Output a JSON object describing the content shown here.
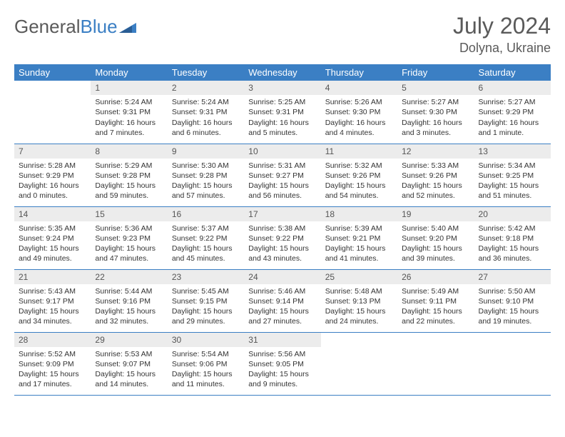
{
  "logo": {
    "text_gray": "General",
    "text_blue": "Blue"
  },
  "header": {
    "month_title": "July 2024",
    "location": "Dolyna, Ukraine"
  },
  "colors": {
    "header_bar": "#3b7fc4",
    "daynum_bg": "#ececec",
    "border": "#3b7fc4",
    "text_gray": "#5a5a5a",
    "background": "#ffffff"
  },
  "calendar": {
    "day_headers": [
      "Sunday",
      "Monday",
      "Tuesday",
      "Wednesday",
      "Thursday",
      "Friday",
      "Saturday"
    ],
    "first_weekday_index": 1,
    "days": [
      {
        "n": 1,
        "sr": "5:24 AM",
        "ss": "9:31 PM",
        "dl": "16 hours and 7 minutes."
      },
      {
        "n": 2,
        "sr": "5:24 AM",
        "ss": "9:31 PM",
        "dl": "16 hours and 6 minutes."
      },
      {
        "n": 3,
        "sr": "5:25 AM",
        "ss": "9:31 PM",
        "dl": "16 hours and 5 minutes."
      },
      {
        "n": 4,
        "sr": "5:26 AM",
        "ss": "9:30 PM",
        "dl": "16 hours and 4 minutes."
      },
      {
        "n": 5,
        "sr": "5:27 AM",
        "ss": "9:30 PM",
        "dl": "16 hours and 3 minutes."
      },
      {
        "n": 6,
        "sr": "5:27 AM",
        "ss": "9:29 PM",
        "dl": "16 hours and 1 minute."
      },
      {
        "n": 7,
        "sr": "5:28 AM",
        "ss": "9:29 PM",
        "dl": "16 hours and 0 minutes."
      },
      {
        "n": 8,
        "sr": "5:29 AM",
        "ss": "9:28 PM",
        "dl": "15 hours and 59 minutes."
      },
      {
        "n": 9,
        "sr": "5:30 AM",
        "ss": "9:28 PM",
        "dl": "15 hours and 57 minutes."
      },
      {
        "n": 10,
        "sr": "5:31 AM",
        "ss": "9:27 PM",
        "dl": "15 hours and 56 minutes."
      },
      {
        "n": 11,
        "sr": "5:32 AM",
        "ss": "9:26 PM",
        "dl": "15 hours and 54 minutes."
      },
      {
        "n": 12,
        "sr": "5:33 AM",
        "ss": "9:26 PM",
        "dl": "15 hours and 52 minutes."
      },
      {
        "n": 13,
        "sr": "5:34 AM",
        "ss": "9:25 PM",
        "dl": "15 hours and 51 minutes."
      },
      {
        "n": 14,
        "sr": "5:35 AM",
        "ss": "9:24 PM",
        "dl": "15 hours and 49 minutes."
      },
      {
        "n": 15,
        "sr": "5:36 AM",
        "ss": "9:23 PM",
        "dl": "15 hours and 47 minutes."
      },
      {
        "n": 16,
        "sr": "5:37 AM",
        "ss": "9:22 PM",
        "dl": "15 hours and 45 minutes."
      },
      {
        "n": 17,
        "sr": "5:38 AM",
        "ss": "9:22 PM",
        "dl": "15 hours and 43 minutes."
      },
      {
        "n": 18,
        "sr": "5:39 AM",
        "ss": "9:21 PM",
        "dl": "15 hours and 41 minutes."
      },
      {
        "n": 19,
        "sr": "5:40 AM",
        "ss": "9:20 PM",
        "dl": "15 hours and 39 minutes."
      },
      {
        "n": 20,
        "sr": "5:42 AM",
        "ss": "9:18 PM",
        "dl": "15 hours and 36 minutes."
      },
      {
        "n": 21,
        "sr": "5:43 AM",
        "ss": "9:17 PM",
        "dl": "15 hours and 34 minutes."
      },
      {
        "n": 22,
        "sr": "5:44 AM",
        "ss": "9:16 PM",
        "dl": "15 hours and 32 minutes."
      },
      {
        "n": 23,
        "sr": "5:45 AM",
        "ss": "9:15 PM",
        "dl": "15 hours and 29 minutes."
      },
      {
        "n": 24,
        "sr": "5:46 AM",
        "ss": "9:14 PM",
        "dl": "15 hours and 27 minutes."
      },
      {
        "n": 25,
        "sr": "5:48 AM",
        "ss": "9:13 PM",
        "dl": "15 hours and 24 minutes."
      },
      {
        "n": 26,
        "sr": "5:49 AM",
        "ss": "9:11 PM",
        "dl": "15 hours and 22 minutes."
      },
      {
        "n": 27,
        "sr": "5:50 AM",
        "ss": "9:10 PM",
        "dl": "15 hours and 19 minutes."
      },
      {
        "n": 28,
        "sr": "5:52 AM",
        "ss": "9:09 PM",
        "dl": "15 hours and 17 minutes."
      },
      {
        "n": 29,
        "sr": "5:53 AM",
        "ss": "9:07 PM",
        "dl": "15 hours and 14 minutes."
      },
      {
        "n": 30,
        "sr": "5:54 AM",
        "ss": "9:06 PM",
        "dl": "15 hours and 11 minutes."
      },
      {
        "n": 31,
        "sr": "5:56 AM",
        "ss": "9:05 PM",
        "dl": "15 hours and 9 minutes."
      }
    ],
    "labels": {
      "sunrise": "Sunrise:",
      "sunset": "Sunset:",
      "daylight": "Daylight:"
    }
  }
}
